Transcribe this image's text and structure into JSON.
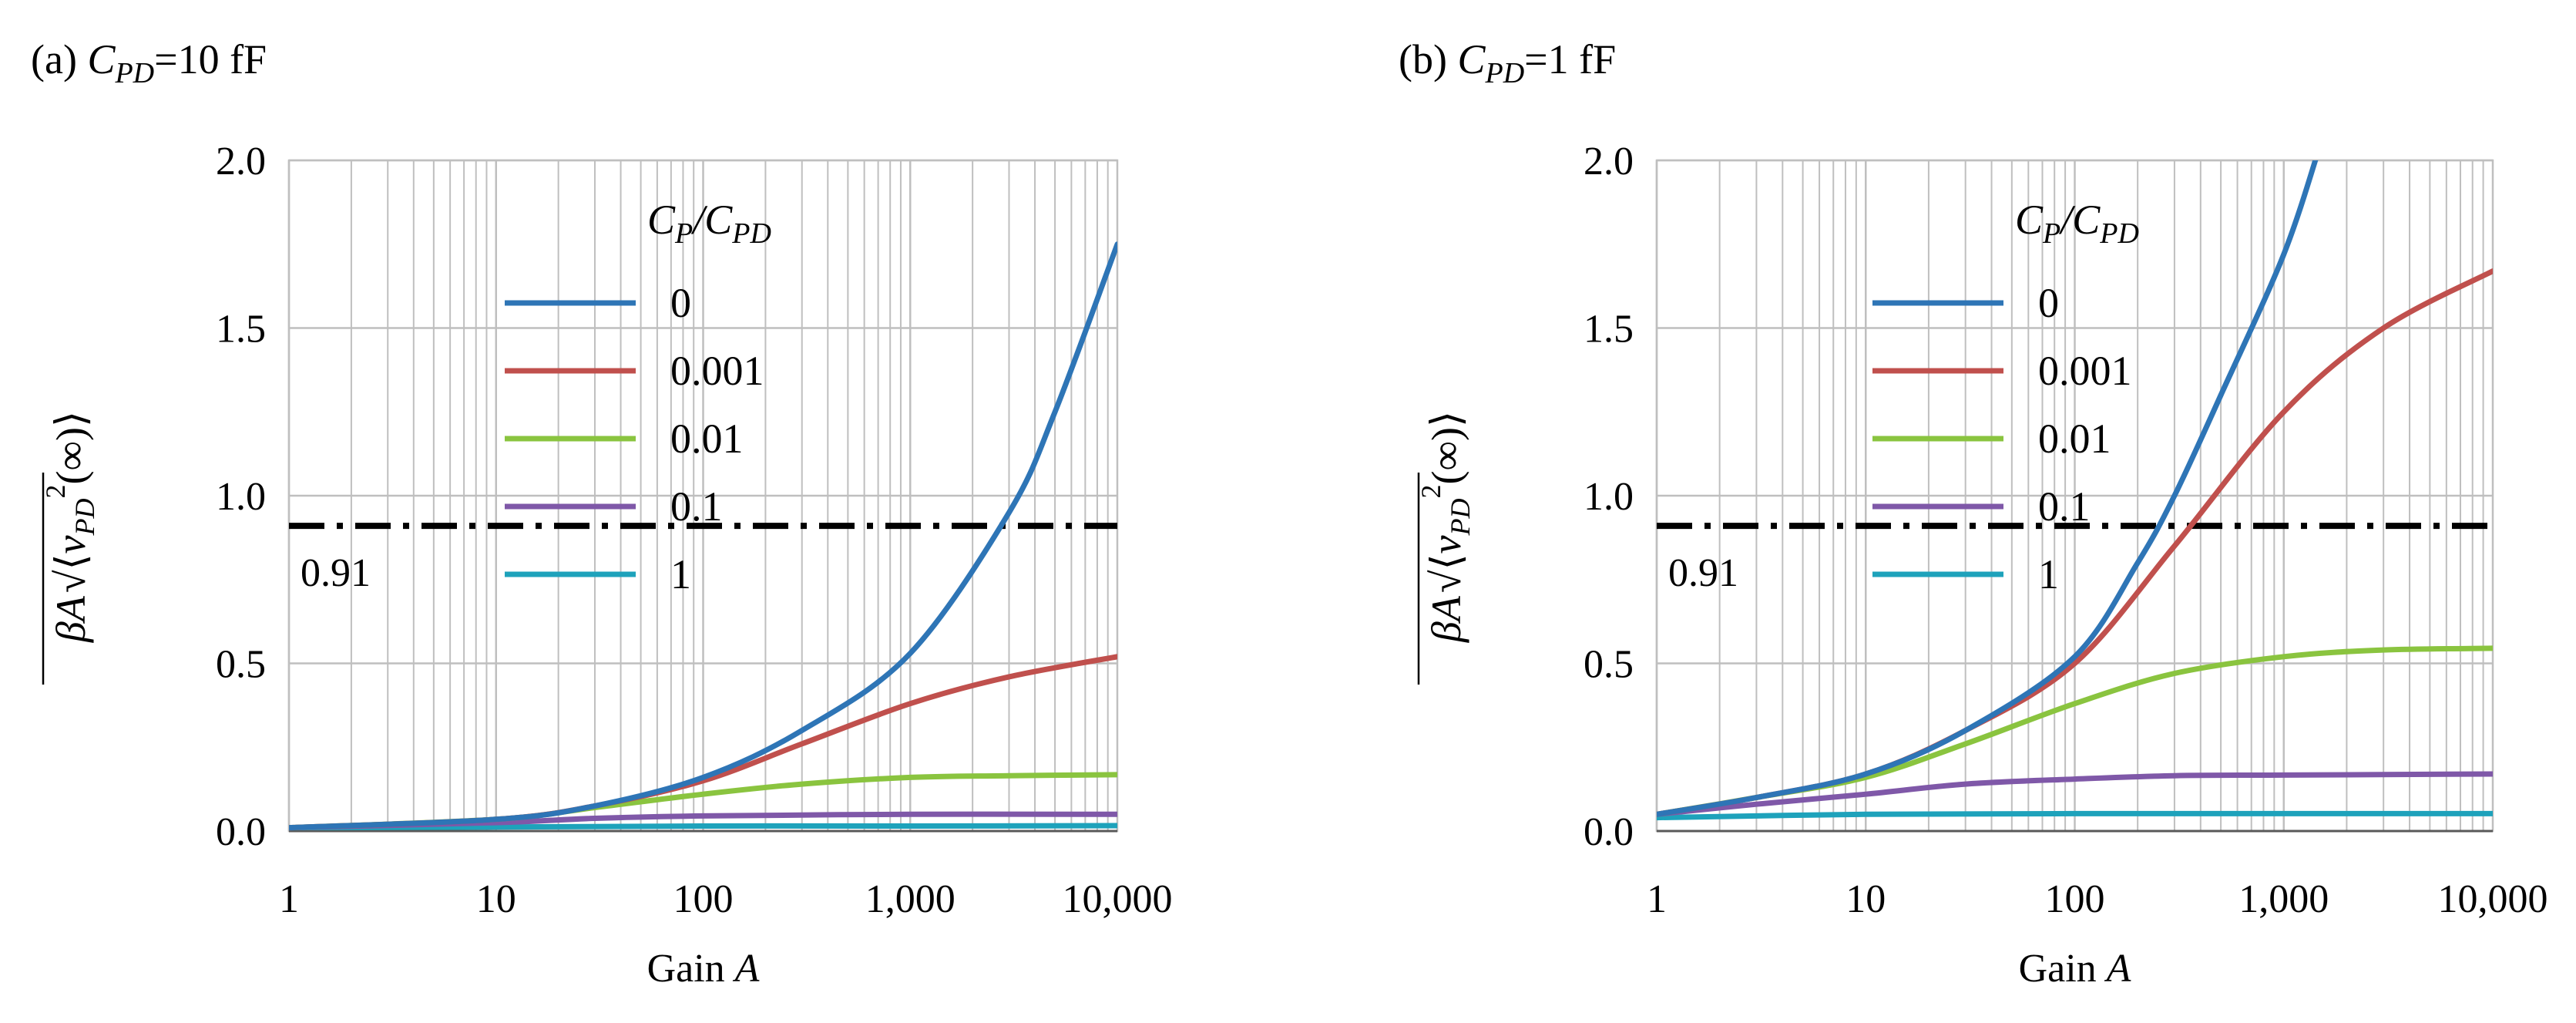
{
  "chart_data": [
    {
      "id": "a",
      "type": "line",
      "panel_label": "(a)",
      "title_symbol": "C",
      "title_subscript": "PD",
      "title_value": "=10 fF",
      "xlabel": "Gain",
      "xlabel_symbol": "A",
      "xscale": "log",
      "xlim": [
        1,
        10000
      ],
      "ylim": [
        0,
        2
      ],
      "xtick_values": [
        1,
        10,
        100,
        1000,
        10000
      ],
      "xtick_labels": [
        "1",
        "10",
        "100",
        "1,000",
        "10,000"
      ],
      "ytick_values": [
        0,
        0.5,
        1,
        1.5,
        2
      ],
      "ytick_labels": [
        "0.0",
        "0.5",
        "1.0",
        "1.5",
        "2.0"
      ],
      "grid": true,
      "threshold": {
        "value": 0.91,
        "label": "0.91",
        "style": "dash-dot"
      },
      "legend": {
        "title": "C_P/C_PD",
        "placement": "top-left",
        "entries": [
          "0",
          "0.001",
          "0.01",
          "0.1",
          "1"
        ]
      },
      "series": [
        {
          "name": "0",
          "color": "#2e75b6",
          "points": [
            [
              1,
              0.01
            ],
            [
              10,
              0.035
            ],
            [
              30,
              0.075
            ],
            [
              100,
              0.16
            ],
            [
              300,
              0.3
            ],
            [
              1000,
              0.53
            ],
            [
              3000,
              0.95
            ],
            [
              5000,
              1.25
            ],
            [
              10000,
              1.75
            ]
          ]
        },
        {
          "name": "0.001",
          "color": "#c0504d",
          "points": [
            [
              1,
              0.01
            ],
            [
              10,
              0.035
            ],
            [
              30,
              0.075
            ],
            [
              100,
              0.15
            ],
            [
              300,
              0.26
            ],
            [
              1000,
              0.38
            ],
            [
              3000,
              0.46
            ],
            [
              10000,
              0.52
            ]
          ]
        },
        {
          "name": "0.01",
          "color": "#8ac43f",
          "points": [
            [
              1,
              0.01
            ],
            [
              10,
              0.035
            ],
            [
              30,
              0.07
            ],
            [
              100,
              0.11
            ],
            [
              300,
              0.14
            ],
            [
              1000,
              0.16
            ],
            [
              3000,
              0.165
            ],
            [
              10000,
              0.168
            ]
          ]
        },
        {
          "name": "0.1",
          "color": "#7f58a8",
          "points": [
            [
              1,
              0.01
            ],
            [
              10,
              0.025
            ],
            [
              30,
              0.038
            ],
            [
              100,
              0.045
            ],
            [
              1000,
              0.05
            ],
            [
              10000,
              0.05
            ]
          ]
        },
        {
          "name": "1",
          "color": "#1ea2bb",
          "points": [
            [
              1,
              0.01
            ],
            [
              10,
              0.012
            ],
            [
              100,
              0.015
            ],
            [
              1000,
              0.015
            ],
            [
              10000,
              0.016
            ]
          ]
        }
      ]
    },
    {
      "id": "b",
      "type": "line",
      "panel_label": "(b)",
      "title_symbol": "C",
      "title_subscript": "PD",
      "title_value": "=1 fF",
      "xlabel": "Gain",
      "xlabel_symbol": "A",
      "xscale": "log",
      "xlim": [
        1,
        10000
      ],
      "ylim": [
        0,
        2
      ],
      "xtick_values": [
        1,
        10,
        100,
        1000,
        10000
      ],
      "xtick_labels": [
        "1",
        "10",
        "100",
        "1,000",
        "10,000"
      ],
      "ytick_values": [
        0,
        0.5,
        1,
        1.5,
        2
      ],
      "ytick_labels": [
        "0.0",
        "0.5",
        "1.0",
        "1.5",
        "2.0"
      ],
      "grid": true,
      "threshold": {
        "value": 0.91,
        "label": "0.91",
        "style": "dash-dot"
      },
      "legend": {
        "title": "C_P/C_PD",
        "placement": "top-left",
        "entries": [
          "0",
          "0.001",
          "0.01",
          "0.1",
          "1"
        ]
      },
      "series": [
        {
          "name": "0",
          "color": "#2e75b6",
          "points": [
            [
              1,
              0.05
            ],
            [
              3,
              0.1
            ],
            [
              10,
              0.17
            ],
            [
              30,
              0.3
            ],
            [
              100,
              0.52
            ],
            [
              200,
              0.8
            ],
            [
              300,
              1.0
            ],
            [
              500,
              1.3
            ],
            [
              1000,
              1.72
            ],
            [
              1500,
              2.05
            ]
          ]
        },
        {
          "name": "0.001",
          "color": "#c0504d",
          "points": [
            [
              1,
              0.05
            ],
            [
              3,
              0.1
            ],
            [
              10,
              0.17
            ],
            [
              30,
              0.3
            ],
            [
              100,
              0.5
            ],
            [
              300,
              0.85
            ],
            [
              1000,
              1.25
            ],
            [
              3000,
              1.5
            ],
            [
              10000,
              1.67
            ]
          ]
        },
        {
          "name": "0.01",
          "color": "#8ac43f",
          "points": [
            [
              1,
              0.05
            ],
            [
              3,
              0.1
            ],
            [
              10,
              0.16
            ],
            [
              30,
              0.26
            ],
            [
              100,
              0.38
            ],
            [
              300,
              0.47
            ],
            [
              1000,
              0.52
            ],
            [
              3000,
              0.54
            ],
            [
              10000,
              0.545
            ]
          ]
        },
        {
          "name": "0.1",
          "color": "#7f58a8",
          "points": [
            [
              1,
              0.05
            ],
            [
              3,
              0.08
            ],
            [
              10,
              0.11
            ],
            [
              30,
              0.14
            ],
            [
              100,
              0.155
            ],
            [
              300,
              0.165
            ],
            [
              1000,
              0.167
            ],
            [
              10000,
              0.17
            ]
          ]
        },
        {
          "name": "1",
          "color": "#1ea2bb",
          "points": [
            [
              1,
              0.04
            ],
            [
              10,
              0.05
            ],
            [
              100,
              0.052
            ],
            [
              1000,
              0.052
            ],
            [
              10000,
              0.052
            ]
          ]
        }
      ]
    }
  ],
  "ylabel_parts": {
    "beta": "β",
    "A": "A",
    "bracket_open": "⟨",
    "v": "v",
    "sub": "PD",
    "sup": "2",
    "inf": "(∞)",
    "bracket_close": "⟩"
  },
  "colors": {
    "grid": "#bfbfbf",
    "axis": "#595959",
    "threshold": "#000000"
  }
}
